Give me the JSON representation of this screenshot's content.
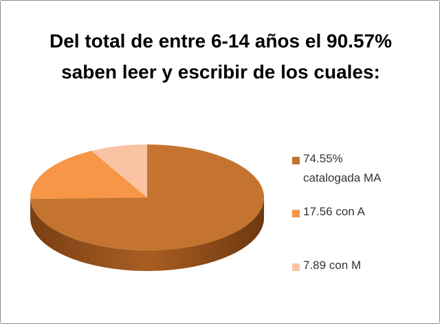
{
  "chart_data": {
    "type": "pie",
    "title": "Del total de entre 6-14 años el 90.57% saben leer y escribir de los cuales:",
    "categories": [
      "74.55% catalogada MA",
      "17.56 con A",
      "7.89 con M"
    ],
    "values": [
      74.55,
      17.56,
      7.89
    ],
    "colors": [
      "#c5742f",
      "#f79646",
      "#f9c3a4"
    ],
    "legend": "right"
  }
}
